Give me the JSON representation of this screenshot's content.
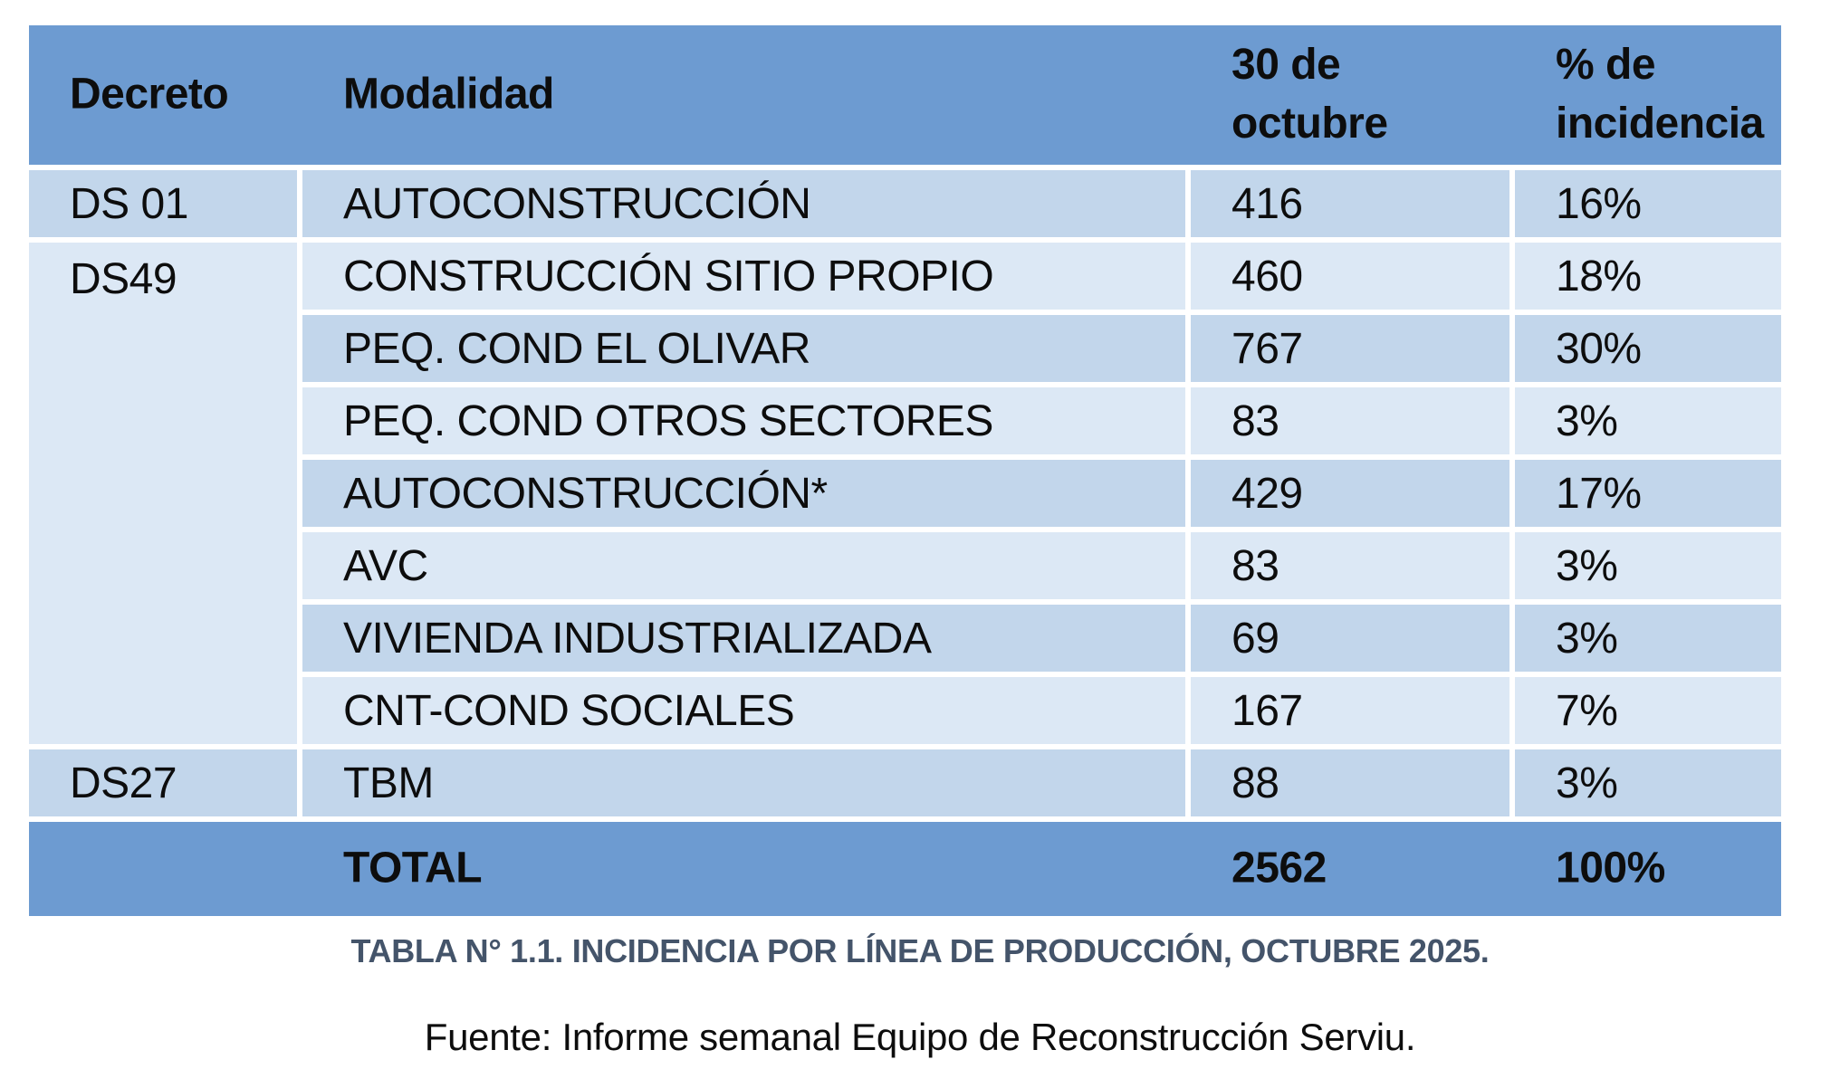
{
  "colors": {
    "header_blue": "#6D9BD1",
    "band_dark": "#C2D6EB",
    "band_light": "#DCE8F5",
    "caption_color": "#44546A",
    "text_color": "#0d0d0d",
    "border_white": "#ffffff"
  },
  "table": {
    "headers": {
      "decreto": "Decreto",
      "modalidad": "Modalidad",
      "fecha": "30 de octubre",
      "incidencia": "% de incidencia"
    },
    "rows": [
      {
        "decreto": "DS 01",
        "modalidad": "AUTOCONSTRUCCIÓN",
        "valor": "416",
        "pct": "16%"
      },
      {
        "decreto": "DS49",
        "modalidad": "CONSTRUCCIÓN SITIO PROPIO",
        "valor": "460",
        "pct": "18%"
      },
      {
        "decreto": "",
        "modalidad": "PEQ. COND EL OLIVAR",
        "valor": "767",
        "pct": "30%"
      },
      {
        "decreto": "",
        "modalidad": "PEQ. COND OTROS SECTORES",
        "valor": "83",
        "pct": "3%"
      },
      {
        "decreto": "",
        "modalidad": "AUTOCONSTRUCCIÓN*",
        "valor": "429",
        "pct": "17%"
      },
      {
        "decreto": "",
        "modalidad": "AVC",
        "valor": "83",
        "pct": "3%"
      },
      {
        "decreto": "",
        "modalidad": "VIVIENDA INDUSTRIALIZADA",
        "valor": "69",
        "pct": "3%"
      },
      {
        "decreto": "",
        "modalidad": "CNT-COND SOCIALES",
        "valor": "167",
        "pct": "7%"
      },
      {
        "decreto": "DS27",
        "modalidad": "TBM",
        "valor": "88",
        "pct": "3%"
      }
    ],
    "total": {
      "label": "TOTAL",
      "valor": "2562",
      "pct": "100%"
    }
  },
  "caption": "TABLA N° 1.1. INCIDENCIA POR LÍNEA DE PRODUCCIÓN, OCTUBRE 2025.",
  "fuente": "Fuente: Informe semanal Equipo de Reconstrucción Serviu."
}
